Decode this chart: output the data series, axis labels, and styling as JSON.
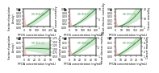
{
  "panels": [
    {
      "label": "a",
      "xmax": 200,
      "xticks": [
        0,
        50,
        100,
        150,
        200
      ],
      "xlabel": "PFOS concentration (ng/mL)",
      "yleft_max": 0.05,
      "yleft_ticks": [
        0.0,
        0.01,
        0.02,
        0.03,
        0.04,
        0.05
      ],
      "yright_label": "All cause mortality",
      "yright_min": 1,
      "yright_max": 2,
      "yright_ticks": [
        1,
        2
      ],
      "ci_color": "#c8e6c9",
      "hr_color": "#3a8c3f",
      "dist_color": "#f7c5c5",
      "hline_val": 1.0,
      "hr_shape": "pfos_allcause"
    },
    {
      "label": "b",
      "xmax": 200,
      "xticks": [
        0,
        50,
        100,
        150,
        200
      ],
      "xlabel": "PFOS concentration (ng/mL)",
      "yleft_max": 0.05,
      "yleft_ticks": [
        0.0,
        0.01,
        0.02,
        0.03,
        0.04,
        0.05
      ],
      "yright_label": "Heart disease mortality",
      "yright_min": 1,
      "yright_max": 10,
      "yright_ticks": [
        1,
        5,
        10
      ],
      "ci_color": "#c8e6c9",
      "hr_color": "#3a8c3f",
      "dist_color": "#f7c5c5",
      "hline_val": 1.0,
      "hr_shape": "pfos_heart"
    },
    {
      "label": "c",
      "xmax": 200,
      "xticks": [
        0,
        50,
        100,
        150,
        200
      ],
      "xlabel": "PFOS concentration (ng/mL)",
      "yleft_max": 0.05,
      "yleft_ticks": [
        0.0,
        0.01,
        0.02,
        0.03,
        0.04,
        0.05
      ],
      "yright_label": "Cancer mortality",
      "yright_min": 1,
      "yright_max": 20,
      "yright_ticks": [
        1,
        10,
        20
      ],
      "ci_color": "#c8e6c9",
      "hr_color": "#3a8c3f",
      "dist_color": "#f7c5c5",
      "hline_val": 1.0,
      "hr_shape": "pfos_cancer"
    },
    {
      "label": "d",
      "xmax": 50,
      "xticks": [
        0,
        10,
        20,
        30,
        40,
        50
      ],
      "xlabel": "PFOA concentration (ng/mL)",
      "yleft_max": 0.2,
      "yleft_ticks": [
        0.0,
        0.05,
        0.1,
        0.15,
        0.2
      ],
      "yright_label": "All cause mortality",
      "yright_min": 0.5,
      "yright_max": 1.75,
      "yright_ticks": [
        0.5,
        0.75,
        1.0,
        1.25,
        1.5,
        1.75
      ],
      "ci_color": "#c8e6c9",
      "hr_color": "#3a8c3f",
      "dist_color": "#f7c5c5",
      "hline_val": 1.0,
      "hr_shape": "pfoa_allcause"
    },
    {
      "label": "e",
      "xmax": 50,
      "xticks": [
        0,
        10,
        20,
        30,
        40,
        50
      ],
      "xlabel": "PFOA concentration (ng/mL)",
      "yleft_max": 0.2,
      "yleft_ticks": [
        0.0,
        0.05,
        0.1,
        0.15,
        0.2
      ],
      "yright_label": "Heart disease mortality",
      "yright_min": 1,
      "yright_max": 3,
      "yright_ticks": [
        1,
        2,
        3
      ],
      "ci_color": "#c8e6c9",
      "hr_color": "#3a8c3f",
      "dist_color": "#f7c5c5",
      "hline_val": 1.0,
      "hr_shape": "pfoa_heart"
    },
    {
      "label": "f",
      "xmax": 50,
      "xticks": [
        0,
        10,
        20,
        30,
        40,
        50
      ],
      "xlabel": "PFOA concentration (ng/mL)",
      "yleft_max": 0.2,
      "yleft_ticks": [
        0.0,
        0.05,
        0.1,
        0.15,
        0.2
      ],
      "yright_label": "Cancer mortality",
      "yright_min": 1,
      "yright_max": 5,
      "yright_ticks": [
        1,
        2,
        3,
        4,
        5
      ],
      "ci_color": "#c8e6c9",
      "hr_color": "#3a8c3f",
      "dist_color": "#f7c5c5",
      "hline_val": 1.0,
      "hr_shape": "pfoa_cancer"
    }
  ],
  "bg": "#ffffff",
  "lfs": 3.8,
  "tfs": 2.2,
  "afs": 2.4
}
